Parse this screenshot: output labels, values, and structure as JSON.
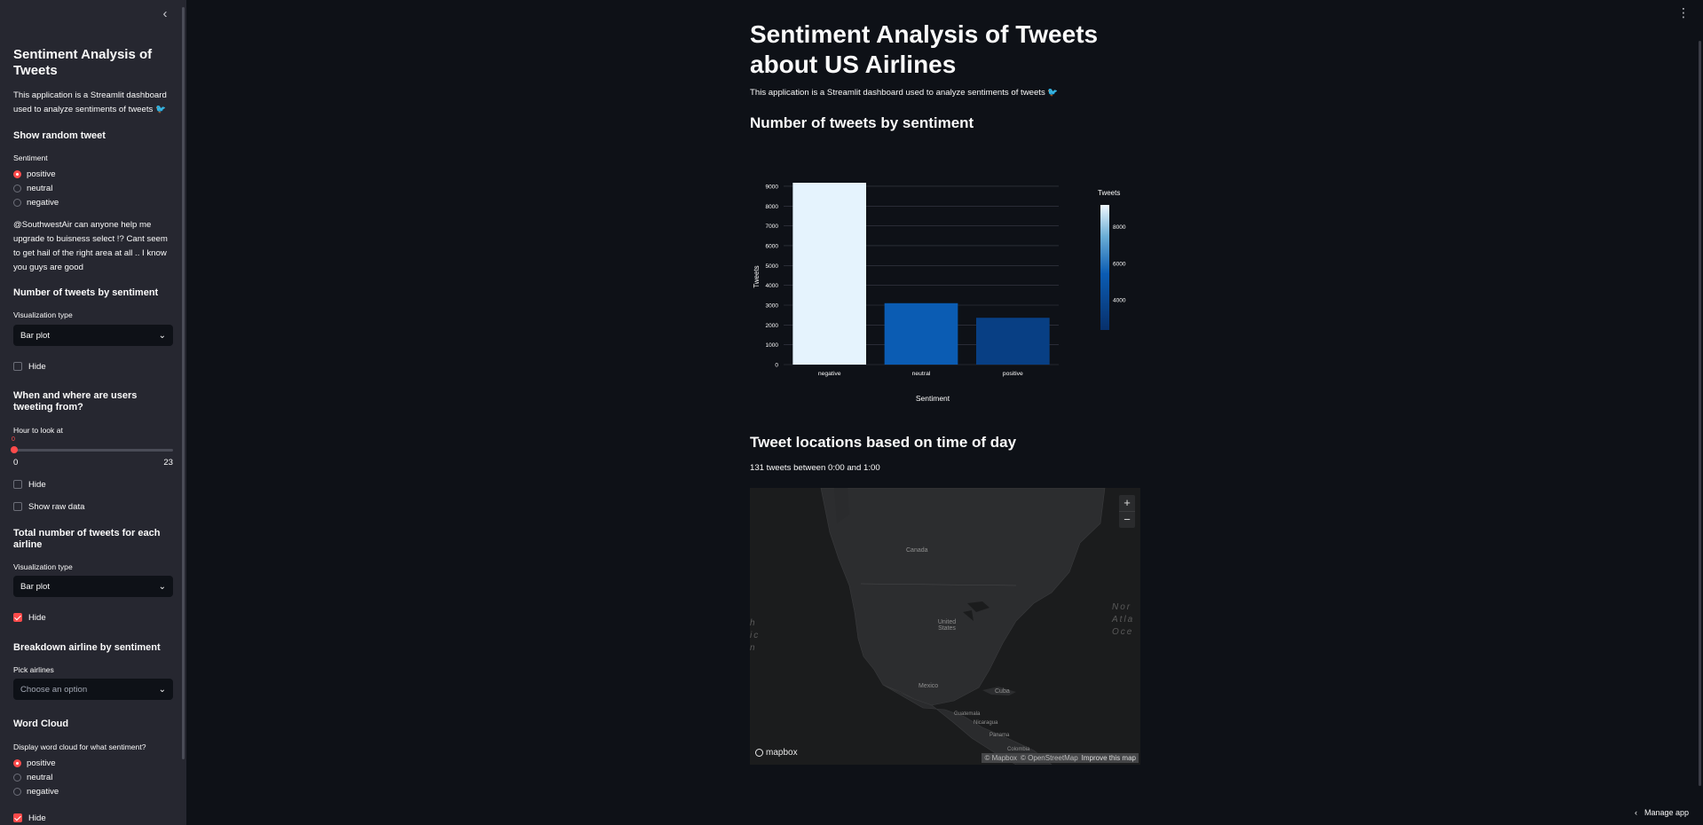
{
  "sidebar": {
    "title": "Sentiment Analysis of Tweets",
    "description": "This application is a Streamlit dashboard used to analyze sentiments of tweets 🐦",
    "random_tweet": {
      "heading": "Show random tweet",
      "label": "Sentiment",
      "options": [
        "positive",
        "neutral",
        "negative"
      ],
      "selected": "positive",
      "tweet": "@SouthwestAir can anyone help me upgrade to buisness select !? Cant seem to get hail of the right area at all .. I know you guys are good"
    },
    "sentiment_count": {
      "heading": "Number of tweets by sentiment",
      "label": "Visualization type",
      "value": "Bar plot",
      "hide_label": "Hide",
      "hide_checked": false
    },
    "when_where": {
      "heading": "When and where are users tweeting from?",
      "slider_label": "Hour to look at",
      "value": "0",
      "min": "0",
      "max": "23",
      "hide_label": "Hide",
      "raw_label": "Show raw data"
    },
    "airline_total": {
      "heading": "Total number of tweets for each airline",
      "label": "Visualization type",
      "value": "Bar plot",
      "hide_label": "Hide",
      "hide_checked": true
    },
    "breakdown": {
      "heading": "Breakdown airline by sentiment",
      "label": "Pick airlines",
      "placeholder": "Choose an option"
    },
    "wordcloud": {
      "heading": "Word Cloud",
      "label": "Display word cloud for what sentiment?",
      "options": [
        "positive",
        "neutral",
        "negative"
      ],
      "selected": "positive",
      "hide_label": "Hide",
      "hide_checked": true
    }
  },
  "main": {
    "title": "Sentiment Analysis of Tweets about US Airlines",
    "description": "This application is a Streamlit dashboard used to analyze sentiments of tweets 🐦",
    "section1": "Number of tweets by sentiment",
    "section2": "Tweet locations based on time of day",
    "count_text": "131 tweets between 0:00 and 1:00"
  },
  "chart_data": {
    "type": "bar",
    "categories": [
      "negative",
      "neutral",
      "positive"
    ],
    "values": [
      9178,
      3099,
      2363
    ],
    "xlabel": "Sentiment",
    "ylabel": "Tweets",
    "ylim": [
      0,
      9178
    ],
    "yticks": [
      0,
      1000,
      2000,
      3000,
      4000,
      5000,
      6000,
      7000,
      8000,
      9000
    ],
    "colors": [
      "#e5f3fd",
      "#0b5cb3",
      "#083f84"
    ],
    "colorbar": {
      "title": "Tweets",
      "ticks": [
        4000,
        6000,
        8000
      ],
      "range": [
        2363,
        9178
      ]
    }
  },
  "map": {
    "labels": {
      "canada": "Canada",
      "us": "United States",
      "mexico": "Mexico",
      "cuba": "Cuba",
      "guatemala": "Guatemala",
      "nicaragua": "Nicaragua",
      "panama": "Panama",
      "colombia": "Colombia"
    },
    "ocean_right": "Nor Atla Oce",
    "ocean_left": "h ic n",
    "zoom_in": "+",
    "zoom_out": "−",
    "logo": "mapbox",
    "attribution": [
      "© Mapbox",
      "© OpenStreetMap",
      "Improve this map"
    ]
  },
  "ui": {
    "manage_app": "Manage app",
    "collapse_icon": "‹",
    "menu_icon": "⋮",
    "colors": {
      "accent": "#ff4b4b",
      "bg": "#0e1117",
      "sidebar": "#262730"
    }
  }
}
